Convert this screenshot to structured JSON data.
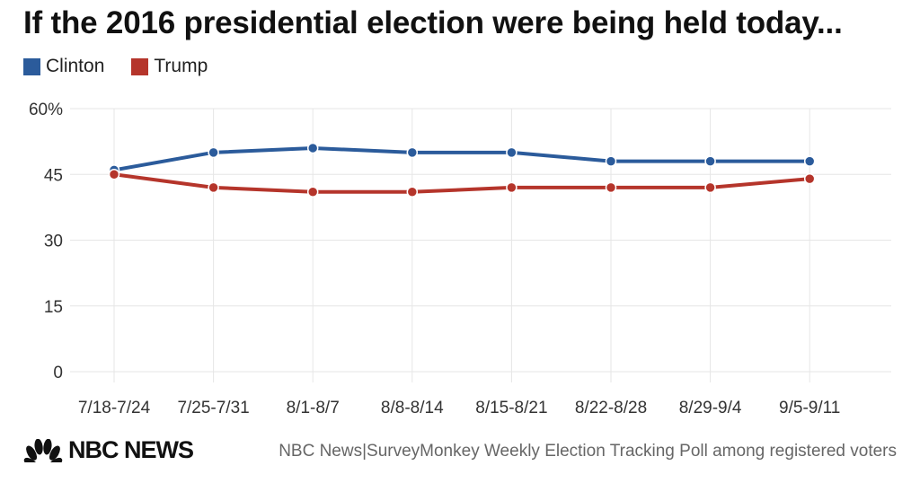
{
  "chart_data": {
    "type": "line",
    "title": "If the 2016 presidential election were being held today...",
    "categories": [
      "7/18-7/24",
      "7/25-7/31",
      "8/1-8/7",
      "8/8-8/14",
      "8/15-8/21",
      "8/22-8/28",
      "8/29-9/4",
      "9/5-9/11"
    ],
    "series": [
      {
        "name": "Clinton",
        "color": "#2b5b9b",
        "values": [
          46,
          50,
          51,
          50,
          50,
          48,
          48,
          48
        ]
      },
      {
        "name": "Trump",
        "color": "#b5352b",
        "values": [
          45,
          42,
          41,
          41,
          42,
          42,
          42,
          44
        ]
      }
    ],
    "yticks": [
      "60%",
      "45",
      "30",
      "15",
      "0"
    ],
    "ytick_values": [
      60,
      45,
      30,
      15,
      0
    ],
    "ylim": [
      0,
      60
    ],
    "xlabel": "",
    "ylabel": "",
    "grid": true,
    "legend_position": "top-left"
  },
  "footer": {
    "logo_text": "NBC NEWS",
    "source": "NBC News|SurveyMonkey Weekly Election Tracking Poll among registered voters"
  }
}
